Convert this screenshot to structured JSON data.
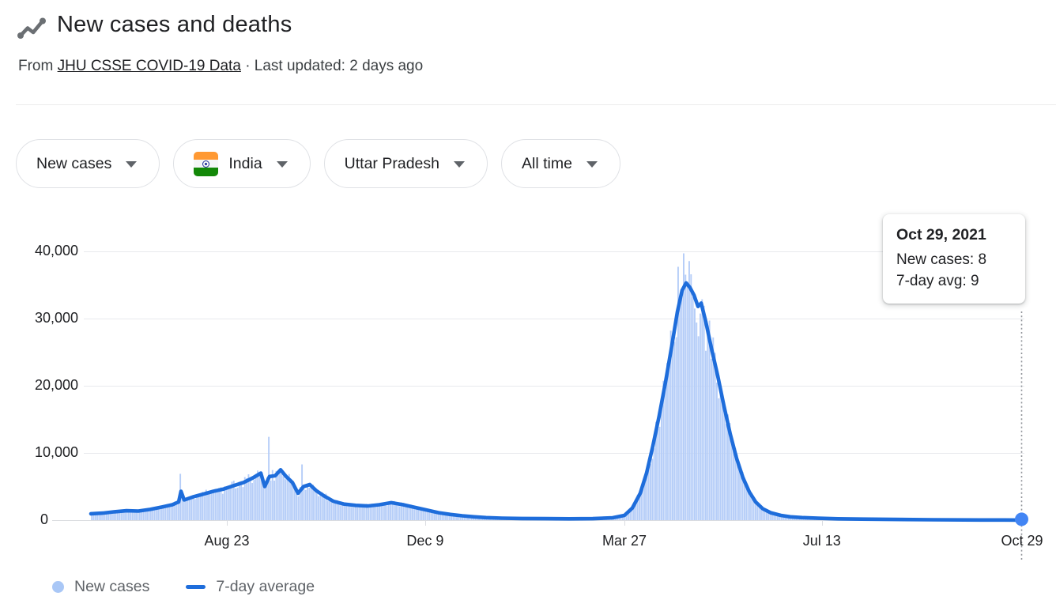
{
  "header": {
    "title": "New cases and deaths",
    "source_prefix": "From",
    "source_link": "JHU CSSE COVID-19 Data",
    "source_suffix": "· Last updated: 2 days ago"
  },
  "filters": [
    {
      "label": "New cases"
    },
    {
      "label": "India",
      "flag": "india-flag"
    },
    {
      "label": "Uttar Pradesh"
    },
    {
      "label": "All time"
    }
  ],
  "tooltip": {
    "title": "Oct 29, 2021",
    "line1": "New cases: 8",
    "line2": "7-day avg: 9"
  },
  "legend": [
    {
      "label": "New cases",
      "swatch": "dot",
      "color": "#a9c7f6"
    },
    {
      "label": "7-day average",
      "swatch": "line",
      "color": "#1e6ddb"
    }
  ],
  "colors": {
    "line": "#1e6ddb",
    "bars": "#b5cdf8",
    "marker": "#4285f4",
    "grid": "#e8eaed",
    "axis": "#dadce0",
    "dotted": "#8f9399",
    "flag_saffron": "#ff9933",
    "flag_green": "#138808",
    "flag_navy": "#23349c"
  },
  "chart_data": {
    "type": "area",
    "title": "New cases and deaths",
    "xlabel": "",
    "ylabel": "",
    "ylim": [
      0,
      40000
    ],
    "grid": true,
    "legend_position": "bottom",
    "x_axis": {
      "ticks": [
        {
          "label": "Aug 23",
          "f": 0.146
        },
        {
          "label": "Dec 9",
          "f": 0.359
        },
        {
          "label": "Mar 27",
          "f": 0.573
        },
        {
          "label": "Jul 13",
          "f": 0.785
        },
        {
          "label": "Oct 29",
          "f": 1.0
        }
      ]
    },
    "y_axis": {
      "ticks": [
        {
          "label": "0",
          "v": 0
        },
        {
          "label": "10,000",
          "v": 10000
        },
        {
          "label": "20,000",
          "v": 20000
        },
        {
          "label": "30,000",
          "v": 30000
        },
        {
          "label": "40,000",
          "v": 40000
        }
      ]
    },
    "series": [
      {
        "name": "New cases",
        "type": "bar",
        "derived_from": "avg_keypoints_with_noise",
        "n_days": 505,
        "spikes": [
          {
            "f": 0.0968,
            "v": 6900
          },
          {
            "f": 0.1918,
            "v": 12400
          },
          {
            "f": 0.2258,
            "v": 8300
          },
          {
            "f": 0.6299,
            "v": 37700
          }
        ]
      },
      {
        "name": "7-day average",
        "type": "line",
        "keypoints": [
          [
            0.0,
            950
          ],
          [
            0.0127,
            1050
          ],
          [
            0.0255,
            1250
          ],
          [
            0.0382,
            1400
          ],
          [
            0.0509,
            1350
          ],
          [
            0.0637,
            1600
          ],
          [
            0.0764,
            1950
          ],
          [
            0.0874,
            2300
          ],
          [
            0.0942,
            2700
          ],
          [
            0.0968,
            4300
          ],
          [
            0.1002,
            3000
          ],
          [
            0.1104,
            3500
          ],
          [
            0.1214,
            3900
          ],
          [
            0.1316,
            4300
          ],
          [
            0.1418,
            4600
          ],
          [
            0.1528,
            5100
          ],
          [
            0.1638,
            5600
          ],
          [
            0.174,
            6300
          ],
          [
            0.1825,
            7000
          ],
          [
            0.1867,
            5000
          ],
          [
            0.1918,
            6500
          ],
          [
            0.1978,
            6600
          ],
          [
            0.2037,
            7500
          ],
          [
            0.2097,
            6500
          ],
          [
            0.2165,
            5600
          ],
          [
            0.2224,
            4000
          ],
          [
            0.2284,
            5000
          ],
          [
            0.2351,
            5300
          ],
          [
            0.2419,
            4400
          ],
          [
            0.2504,
            3600
          ],
          [
            0.2606,
            2800
          ],
          [
            0.2716,
            2400
          ],
          [
            0.2844,
            2200
          ],
          [
            0.2971,
            2100
          ],
          [
            0.3098,
            2300
          ],
          [
            0.3226,
            2600
          ],
          [
            0.3353,
            2300
          ],
          [
            0.348,
            1900
          ],
          [
            0.3608,
            1500
          ],
          [
            0.3735,
            1100
          ],
          [
            0.3862,
            850
          ],
          [
            0.399,
            650
          ],
          [
            0.4117,
            500
          ],
          [
            0.4244,
            380
          ],
          [
            0.4414,
            300
          ],
          [
            0.4626,
            250
          ],
          [
            0.4881,
            220
          ],
          [
            0.5136,
            200
          ],
          [
            0.539,
            220
          ],
          [
            0.5603,
            350
          ],
          [
            0.573,
            700
          ],
          [
            0.5815,
            1800
          ],
          [
            0.59,
            4000
          ],
          [
            0.5968,
            7000
          ],
          [
            0.6035,
            11000
          ],
          [
            0.6103,
            15500
          ],
          [
            0.6171,
            20500
          ],
          [
            0.6239,
            26000
          ],
          [
            0.6299,
            31000
          ],
          [
            0.635,
            34200
          ],
          [
            0.6392,
            35300
          ],
          [
            0.6435,
            34600
          ],
          [
            0.6477,
            33500
          ],
          [
            0.652,
            31800
          ],
          [
            0.6554,
            32300
          ],
          [
            0.6604,
            29500
          ],
          [
            0.6664,
            25600
          ],
          [
            0.6732,
            21500
          ],
          [
            0.6799,
            17000
          ],
          [
            0.6867,
            12800
          ],
          [
            0.6935,
            9200
          ],
          [
            0.7003,
            6300
          ],
          [
            0.7071,
            4200
          ],
          [
            0.7139,
            2700
          ],
          [
            0.7215,
            1700
          ],
          [
            0.73,
            1100
          ],
          [
            0.741,
            700
          ],
          [
            0.7512,
            500
          ],
          [
            0.764,
            380
          ],
          [
            0.7809,
            280
          ],
          [
            0.8022,
            200
          ],
          [
            0.8276,
            150
          ],
          [
            0.8616,
            100
          ],
          [
            0.904,
            60
          ],
          [
            0.955,
            25
          ],
          [
            1.0,
            9
          ]
        ]
      }
    ],
    "endpoint": {
      "f": 1.0,
      "date": "Oct 29, 2021",
      "new_cases": 8,
      "seven_day_avg": 9
    }
  }
}
